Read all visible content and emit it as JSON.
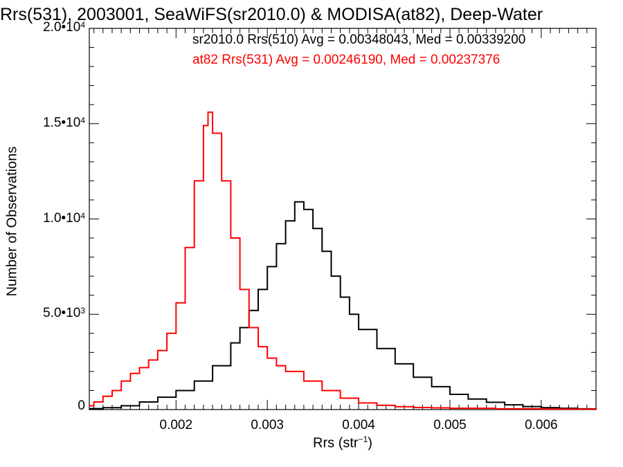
{
  "title": "Rrs(531), 2003001, SeaWiFS(sr2010.0) & MODISA(at82), Deep-Water",
  "xlabel": {
    "text": "Rrs (str",
    "sup": "−1",
    "close": ")"
  },
  "ylabel": "Number of Observations",
  "legend": {
    "line1": "sr2010.0 Rrs(510) Avg = 0.00348043, Med = 0.00339200",
    "line2": "at82 Rrs(531) Avg = 0.00246190, Med = 0.00237376"
  },
  "yticks": [
    {
      "value": 0,
      "base": "0",
      "exp": ""
    },
    {
      "value": 5000,
      "base": "5.0•10",
      "exp": "3"
    },
    {
      "value": 10000,
      "base": "1.0•10",
      "exp": "4"
    },
    {
      "value": 15000,
      "base": "1.5•10",
      "exp": "4"
    },
    {
      "value": 20000,
      "base": "2.0•10",
      "exp": "4"
    }
  ],
  "xticks": [
    {
      "value": 0.002,
      "label": "0.002"
    },
    {
      "value": 0.003,
      "label": "0.003"
    },
    {
      "value": 0.004,
      "label": "0.004"
    },
    {
      "value": 0.005,
      "label": "0.005"
    },
    {
      "value": 0.006,
      "label": "0.006"
    }
  ],
  "colors": {
    "sr2010": "#000000",
    "at82": "#ff0000"
  },
  "chart_data": {
    "type": "area",
    "style": "step histogram",
    "xlim": [
      0.00105,
      0.0066
    ],
    "ylim": [
      0,
      20000
    ],
    "series": [
      {
        "name": "sr2010.0 Rrs(510)",
        "color": "#000000",
        "x": [
          0.00105,
          0.0012,
          0.0014,
          0.0016,
          0.0018,
          0.002,
          0.0022,
          0.0024,
          0.0026,
          0.0027,
          0.0028,
          0.0029,
          0.003,
          0.0031,
          0.0032,
          0.0033,
          0.0034,
          0.0035,
          0.0036,
          0.0037,
          0.0038,
          0.0039,
          0.004,
          0.0042,
          0.0044,
          0.0046,
          0.0048,
          0.005,
          0.0052,
          0.0054,
          0.0056,
          0.0058,
          0.006,
          0.0062,
          0.0064,
          0.0066
        ],
        "values": [
          50,
          100,
          200,
          400,
          650,
          1000,
          1500,
          2300,
          3500,
          4300,
          5200,
          6300,
          7500,
          8700,
          9900,
          10900,
          10500,
          9500,
          8300,
          7000,
          5900,
          5000,
          4200,
          3200,
          2400,
          1700,
          1200,
          800,
          550,
          380,
          250,
          160,
          100,
          70,
          40,
          20
        ]
      },
      {
        "name": "at82 Rrs(531)",
        "color": "#ff0000",
        "x": [
          0.00105,
          0.0011,
          0.0012,
          0.0013,
          0.0014,
          0.0015,
          0.0016,
          0.0017,
          0.0018,
          0.0019,
          0.002,
          0.0021,
          0.0022,
          0.0023,
          0.00235,
          0.0024,
          0.0025,
          0.0026,
          0.0027,
          0.0028,
          0.0029,
          0.003,
          0.0031,
          0.0032,
          0.0034,
          0.0036,
          0.0038,
          0.004,
          0.0042,
          0.0044,
          0.0046,
          0.0048,
          0.005,
          0.0055,
          0.006,
          0.0066
        ],
        "values": [
          200,
          400,
          700,
          1000,
          1500,
          1900,
          2200,
          2600,
          3100,
          4000,
          5600,
          8500,
          12000,
          14900,
          15600,
          14500,
          12000,
          9000,
          6300,
          4300,
          3300,
          2700,
          2300,
          2000,
          1500,
          1000,
          600,
          350,
          220,
          150,
          110,
          90,
          70,
          40,
          30,
          20
        ]
      }
    ]
  }
}
